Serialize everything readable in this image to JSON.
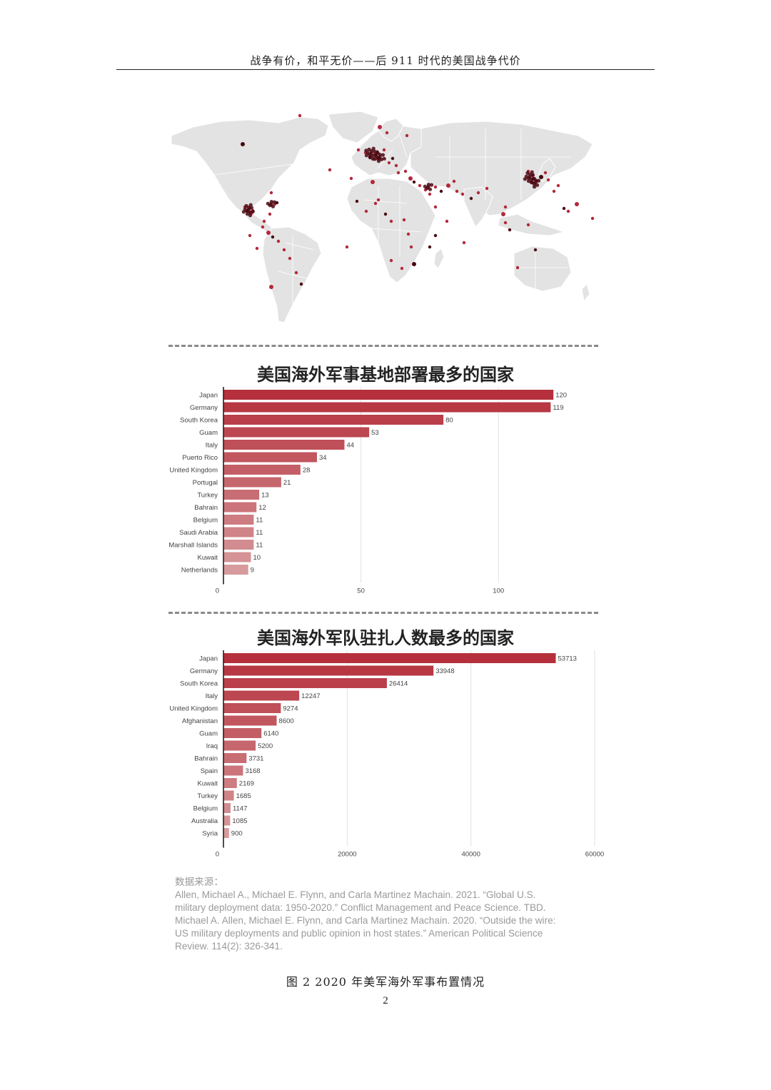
{
  "header": {
    "title": "战争有价，和平无价——后 911 时代的美国战争代价"
  },
  "map": {
    "land_color": "#e3e3e3",
    "border_color": "#ffffff",
    "marker_color": "#b3283a",
    "marker_dark": "#4a0710"
  },
  "charts": [
    {
      "title": "美国海外军事基地部署最多的国家",
      "chart_data": {
        "type": "bar",
        "orientation": "horizontal",
        "title": "美国海外军事基地部署最多的国家",
        "categories": [
          "Japan",
          "Germany",
          "South Korea",
          "Guam",
          "Italy",
          "Puerto Rico",
          "United Kingdom",
          "Portugal",
          "Turkey",
          "Bahrain",
          "Belgium",
          "Saudi Arabia",
          "Marshall Islands",
          "Kuwait",
          "Netherlands"
        ],
        "values": [
          120,
          119,
          80,
          53,
          44,
          34,
          28,
          21,
          13,
          12,
          11,
          11,
          11,
          10,
          9
        ],
        "xlim": [
          0,
          135
        ],
        "ticks": [
          0,
          50,
          100
        ],
        "grid": true,
        "color_start": "#b5303c",
        "color_end": "#d79b9d"
      }
    },
    {
      "title": "美国海外军队驻扎人数最多的国家",
      "chart_data": {
        "type": "bar",
        "orientation": "horizontal",
        "title": "美国海外军队驻扎人数最多的国家",
        "categories": [
          "Japan",
          "Germany",
          "South Korea",
          "Italy",
          "United Kingdom",
          "Afghanistan",
          "Guam",
          "Iraq",
          "Bahrain",
          "Spain",
          "Kuwait",
          "Turkey",
          "Belgium",
          "Australia",
          "Syria"
        ],
        "values": [
          53713,
          33948,
          26414,
          12247,
          9274,
          8600,
          6140,
          5200,
          3731,
          3168,
          2169,
          1685,
          1147,
          1085,
          900
        ],
        "xlim": [
          0,
          60000
        ],
        "ticks": [
          0,
          20000,
          40000,
          60000
        ],
        "grid": true,
        "color_start": "#b5303c",
        "color_end": "#d79b9d"
      }
    }
  ],
  "source": {
    "label": "数据来源：",
    "lines": [
      "Allen, Michael A., Michael E. Flynn, and Carla Martinez Machain. 2021. “Global U.S.",
      "military deployment data: 1950-2020.” Conflict Management and Peace Science. TBD.",
      "Michael A. Allen, Michael E. Flynn, and Carla Martinez Machain. 2020. “Outside the wire:",
      "US military deployments and public opinion in host states.” American Political Science",
      "Review. 114(2): 326-341."
    ]
  },
  "caption": "图 2 2020 年美军海外军事布置情况",
  "page_number": "2"
}
